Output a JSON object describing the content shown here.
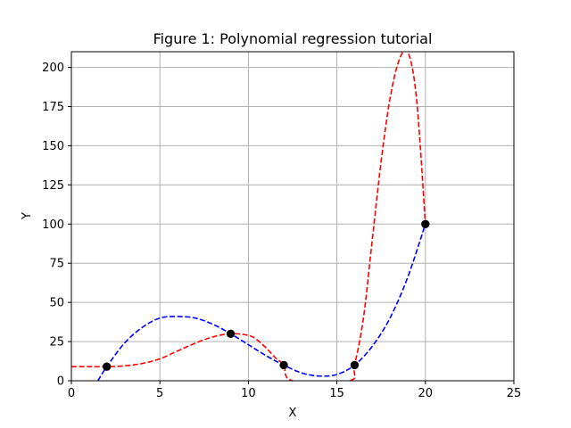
{
  "chart_data": {
    "type": "scatter",
    "title": "Figure 1: Polynomial regression tutorial",
    "xlabel": "X",
    "ylabel": "Y",
    "xlim": [
      0,
      25
    ],
    "ylim": [
      0,
      210
    ],
    "xticks": [
      0,
      5,
      10,
      15,
      20,
      25
    ],
    "yticks": [
      0,
      25,
      50,
      75,
      100,
      125,
      150,
      175,
      200
    ],
    "grid": true,
    "points": {
      "x": [
        2,
        9,
        12,
        16,
        20
      ],
      "y": [
        9,
        30,
        10,
        10,
        100
      ],
      "color": "#000000"
    },
    "series": [
      {
        "style": "dashed",
        "color": "#0000ff",
        "x": [
          1.5,
          2,
          3,
          4,
          5,
          6,
          7,
          8,
          9,
          10,
          11,
          12,
          13,
          14,
          15,
          16,
          17,
          18,
          19,
          20
        ],
        "y": [
          0,
          9,
          24,
          34,
          40,
          41,
          40,
          36,
          30,
          23,
          16,
          10,
          5,
          3,
          4,
          10,
          22,
          40,
          66,
          100
        ]
      },
      {
        "style": "dashed",
        "color": "#ff0000",
        "x": [
          0,
          1,
          2,
          3,
          4,
          5,
          6,
          7,
          8,
          9,
          10,
          10.5,
          11,
          11.5,
          12,
          12.5,
          15.7,
          16,
          16.5,
          17,
          17.5,
          18,
          18.5,
          19,
          19.5,
          20
        ],
        "y": [
          9,
          9,
          9,
          9.5,
          11,
          14,
          19,
          24,
          28,
          30,
          29,
          26,
          21,
          15,
          10,
          0,
          0,
          10,
          40,
          90,
          140,
          180,
          204,
          210,
          180,
          100
        ]
      }
    ]
  }
}
